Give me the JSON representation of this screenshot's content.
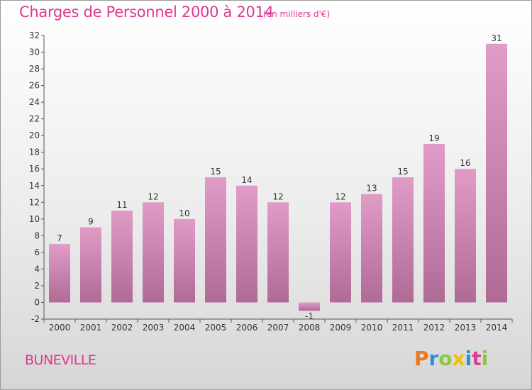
{
  "chart_data": {
    "type": "bar",
    "title": "Charges de Personnel 2000 à 2014",
    "subtitle": "(en milliers d'€)",
    "categories": [
      "2000",
      "2001",
      "2002",
      "2003",
      "2004",
      "2005",
      "2006",
      "2007",
      "2008",
      "2009",
      "2010",
      "2011",
      "2012",
      "2013",
      "2014"
    ],
    "values": [
      7,
      9,
      11,
      12,
      10,
      15,
      14,
      12,
      -1,
      12,
      13,
      15,
      19,
      16,
      31
    ],
    "ylim": [
      -2,
      32
    ],
    "yticks": [
      -2,
      0,
      2,
      4,
      6,
      8,
      10,
      12,
      14,
      16,
      18,
      20,
      22,
      24,
      26,
      28,
      30,
      32
    ],
    "grid": false,
    "bar_color": "#e09cc6",
    "bar_color_dark": "#b06a96"
  },
  "commune": "BUNEVILLE",
  "logo": {
    "letters": [
      "P",
      "r",
      "o",
      "x",
      "i",
      "t",
      "i"
    ],
    "colors": [
      "#f07818",
      "#2f8fd4",
      "#8cc83c",
      "#f0c000",
      "#2f8fd4",
      "#e03c8c",
      "#8cc83c"
    ]
  }
}
